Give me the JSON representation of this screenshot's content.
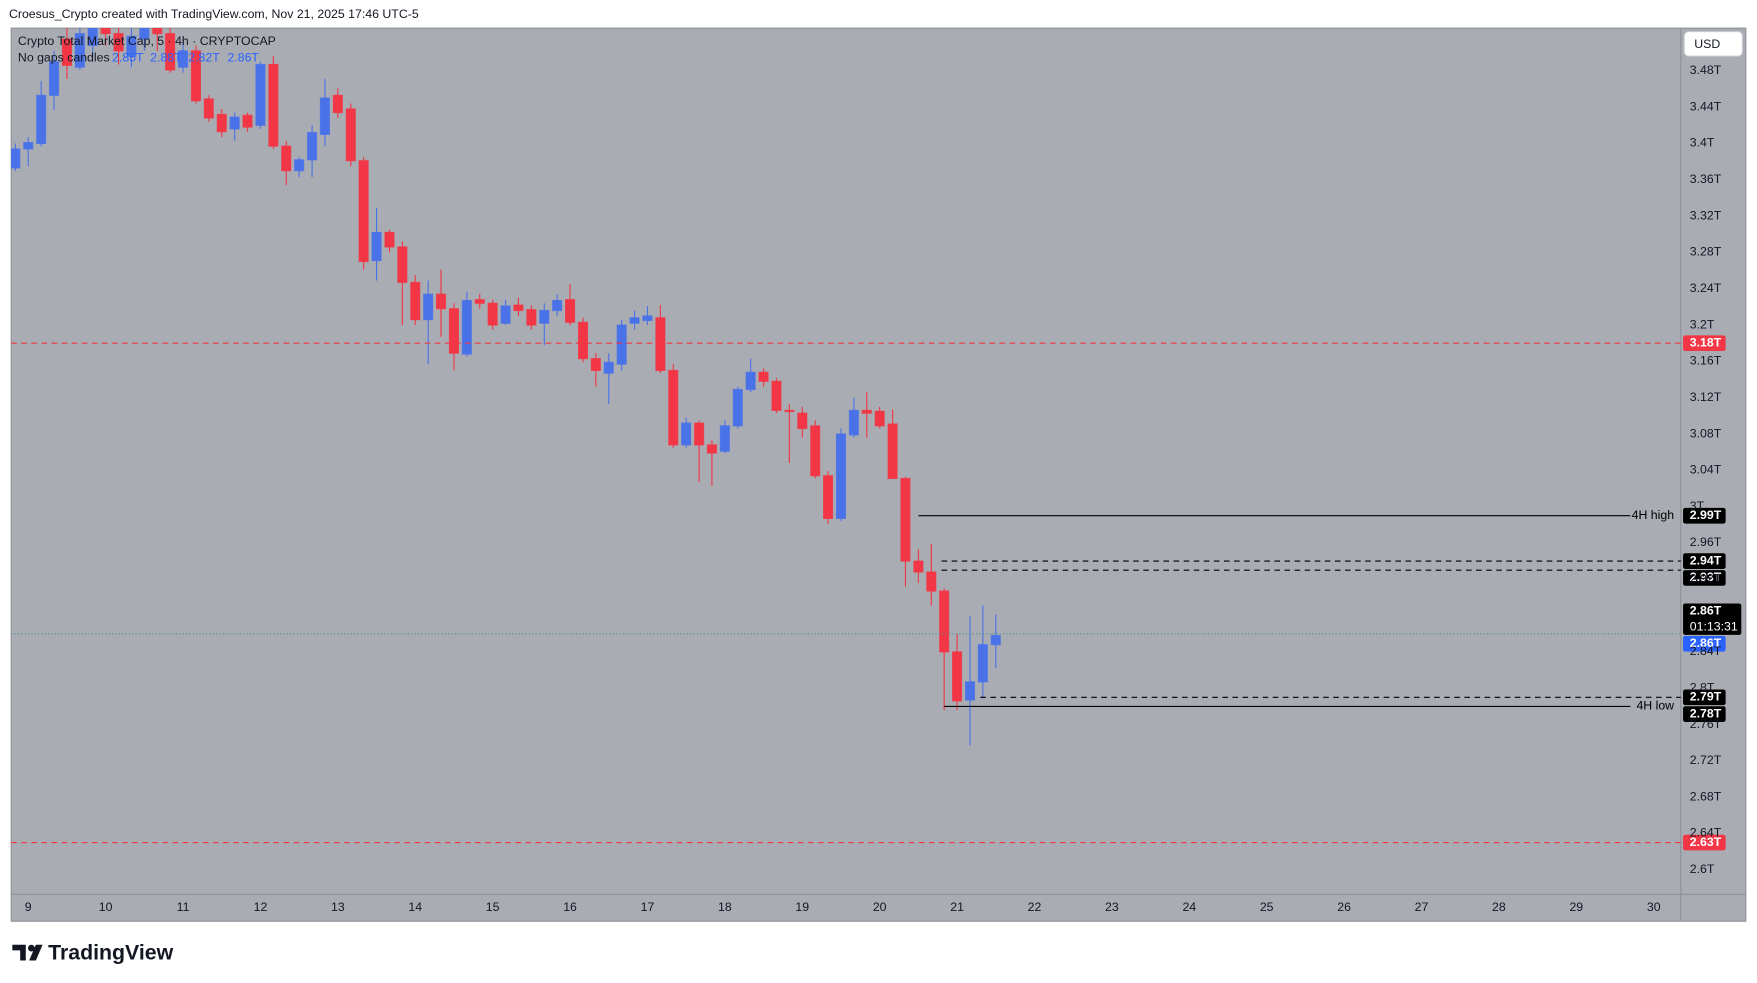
{
  "header": {
    "credit": "Croesus_Crypto created with TradingView.com, Nov 21, 2025 17:46 UTC-5",
    "symbol": "Crypto Total Market Cap, 5 · 4h · CRYPTOCAP",
    "candle_mode": "No gaps candles",
    "ohlc_legend": [
      "2.85T",
      "2.88T",
      "2.82T",
      "2.86T"
    ],
    "currency": "USD"
  },
  "footer": {
    "logo": "TradingView"
  },
  "chart_data": {
    "type": "candlestick",
    "up_color": "#4a72e8",
    "down_color": "#f23645",
    "background": "#a9acb3",
    "xlim": [
      8.78,
      30.35
    ],
    "xticks": [
      9,
      10,
      11,
      12,
      13,
      14,
      15,
      16,
      17,
      18,
      19,
      20,
      21,
      22,
      23,
      24,
      25,
      26,
      27,
      28,
      29,
      30
    ],
    "ylim": [
      2.573,
      3.527
    ],
    "yticks": [
      {
        "value": 3.48,
        "label": "3.48T"
      },
      {
        "value": 3.44,
        "label": "3.44T"
      },
      {
        "value": 3.4,
        "label": "3.4T"
      },
      {
        "value": 3.36,
        "label": "3.36T"
      },
      {
        "value": 3.32,
        "label": "3.32T"
      },
      {
        "value": 3.28,
        "label": "3.28T"
      },
      {
        "value": 3.24,
        "label": "3.24T"
      },
      {
        "value": 3.2,
        "label": "3.2T"
      },
      {
        "value": 3.16,
        "label": "3.16T"
      },
      {
        "value": 3.12,
        "label": "3.12T"
      },
      {
        "value": 3.08,
        "label": "3.08T"
      },
      {
        "value": 3.04,
        "label": "3.04T"
      },
      {
        "value": 3,
        "label": "3T"
      },
      {
        "value": 2.96,
        "label": "2.96T"
      },
      {
        "value": 2.92,
        "label": "2.92T"
      },
      {
        "value": 2.84,
        "label": "2.84T"
      },
      {
        "value": 2.8,
        "label": "2.8T"
      },
      {
        "value": 2.76,
        "label": "2.76T"
      },
      {
        "value": 2.72,
        "label": "2.72T"
      },
      {
        "value": 2.68,
        "label": "2.68T"
      },
      {
        "value": 2.64,
        "label": "2.64T"
      },
      {
        "value": 2.6,
        "label": "2.6T"
      }
    ],
    "grid": false,
    "x": [
      8.833,
      9,
      9.167,
      9.333,
      9.5,
      9.667,
      9.833,
      10,
      10.167,
      10.333,
      10.5,
      10.667,
      10.833,
      11,
      11.167,
      11.333,
      11.5,
      11.667,
      11.833,
      12,
      12.167,
      12.333,
      12.5,
      12.667,
      12.833,
      13,
      13.167,
      13.333,
      13.5,
      13.667,
      13.833,
      14,
      14.167,
      14.333,
      14.5,
      14.667,
      14.833,
      15,
      15.167,
      15.333,
      15.5,
      15.667,
      15.833,
      16,
      16.167,
      16.333,
      16.5,
      16.667,
      16.833,
      17,
      17.167,
      17.333,
      17.5,
      17.667,
      17.833,
      18,
      18.167,
      18.333,
      18.5,
      18.667,
      18.833,
      19,
      19.167,
      19.333,
      19.5,
      19.667,
      19.833,
      20,
      20.167,
      20.333,
      20.5,
      20.667,
      20.833,
      21,
      21.167,
      21.333,
      21.5
    ],
    "open": [
      3.373,
      3.394,
      3.4,
      3.453,
      3.515,
      3.484,
      3.508,
      3.533,
      3.521,
      3.496,
      3.515,
      3.533,
      3.521,
      3.484,
      3.502,
      3.449,
      3.432,
      3.416,
      3.431,
      3.42,
      3.487,
      3.397,
      3.37,
      3.382,
      3.41,
      3.453,
      3.438,
      3.381,
      3.271,
      3.302,
      3.286,
      3.247,
      3.206,
      3.234,
      3.218,
      3.168,
      3.228,
      3.224,
      3.202,
      3.222,
      3.217,
      3.202,
      3.216,
      3.228,
      3.203,
      3.163,
      3.147,
      3.157,
      3.202,
      3.205,
      3.208,
      3.15,
      3.068,
      3.092,
      3.068,
      3.061,
      3.089,
      3.129,
      3.148,
      3.138,
      3.106,
      3.103,
      3.089,
      3.034,
      2.987,
      3.079,
      3.106,
      3.105,
      3.091,
      3.031,
      2.94,
      2.928,
      2.907,
      2.84,
      2.787,
      2.807,
      2.848
    ],
    "high": [
      3.4,
      3.407,
      3.469,
      3.502,
      3.527,
      3.533,
      3.536,
      3.545,
      3.531,
      3.533,
      3.539,
      3.539,
      3.536,
      3.515,
      3.508,
      3.453,
      3.438,
      3.434,
      3.434,
      3.49,
      3.496,
      3.403,
      3.385,
      3.42,
      3.471,
      3.461,
      3.444,
      3.385,
      3.329,
      3.305,
      3.292,
      3.255,
      3.249,
      3.261,
      3.224,
      3.237,
      3.234,
      3.228,
      3.228,
      3.23,
      3.222,
      3.224,
      3.234,
      3.245,
      3.208,
      3.169,
      3.169,
      3.206,
      3.216,
      3.221,
      3.222,
      3.157,
      3.098,
      3.095,
      3.073,
      3.095,
      3.132,
      3.163,
      3.152,
      3.142,
      3.113,
      3.11,
      3.095,
      3.039,
      3.086,
      3.12,
      3.126,
      3.11,
      3.107,
      3.033,
      2.953,
      2.959,
      2.91,
      2.86,
      2.879,
      2.891,
      2.881
    ],
    "low": [
      3.37,
      3.375,
      3.397,
      3.437,
      3.471,
      3.481,
      3.496,
      3.508,
      3.487,
      3.484,
      3.502,
      3.502,
      3.478,
      3.478,
      3.444,
      3.424,
      3.407,
      3.403,
      3.413,
      3.416,
      3.394,
      3.354,
      3.363,
      3.363,
      3.397,
      3.428,
      3.375,
      3.261,
      3.249,
      3.28,
      3.2,
      3.2,
      3.157,
      3.187,
      3.15,
      3.165,
      3.218,
      3.195,
      3.2,
      3.21,
      3.195,
      3.178,
      3.21,
      3.2,
      3.159,
      3.132,
      3.113,
      3.15,
      3.195,
      3.2,
      3.147,
      3.065,
      3.065,
      3.027,
      3.023,
      3.059,
      3.086,
      3.126,
      3.132,
      3.103,
      3.048,
      3.076,
      3.031,
      2.981,
      2.984,
      3.076,
      3.076,
      3.086,
      3.031,
      2.912,
      2.916,
      2.891,
      2.776,
      2.776,
      2.737,
      2.789,
      2.822
    ],
    "close": [
      3.394,
      3.401,
      3.453,
      3.49,
      3.486,
      3.521,
      3.527,
      3.521,
      3.502,
      3.518,
      3.527,
      3.521,
      3.481,
      3.502,
      3.447,
      3.428,
      3.413,
      3.429,
      3.418,
      3.487,
      3.397,
      3.37,
      3.382,
      3.412,
      3.45,
      3.434,
      3.381,
      3.27,
      3.302,
      3.286,
      3.247,
      3.206,
      3.234,
      3.218,
      3.169,
      3.227,
      3.224,
      3.2,
      3.221,
      3.216,
      3.2,
      3.216,
      3.227,
      3.203,
      3.163,
      3.15,
      3.159,
      3.2,
      3.208,
      3.21,
      3.15,
      3.068,
      3.092,
      3.068,
      3.059,
      3.089,
      3.129,
      3.148,
      3.138,
      3.106,
      3.105,
      3.086,
      3.034,
      2.987,
      3.08,
      3.106,
      3.103,
      3.089,
      3.031,
      2.94,
      2.928,
      2.907,
      2.84,
      2.786,
      2.807,
      2.848,
      2.858
    ],
    "levels": [
      {
        "value": 3.18,
        "tag": "3.18T",
        "color": "#f23645",
        "style": "dashed"
      },
      {
        "value": 2.99,
        "tag": "2.99T",
        "label": "4H high",
        "color": "#000000",
        "style": "solid",
        "from": 20.5
      },
      {
        "value": 2.94,
        "tag": "2.94T",
        "color": "#000000",
        "style": "dashed",
        "from": 20.8
      },
      {
        "value": 2.93,
        "tag": "2.93T",
        "color": "#000000",
        "style": "dashed",
        "from": 20.8
      },
      {
        "value": 2.86,
        "tag": "2.86T",
        "color": "#2962ff",
        "style": "dotted"
      },
      {
        "value": 2.79,
        "tag": "2.79T",
        "color": "#000000",
        "style": "dashed",
        "from": 21.3
      },
      {
        "value": 2.78,
        "tag": "2.78T",
        "label": "4H low",
        "color": "#000000",
        "style": "solid",
        "from": 20.83
      },
      {
        "value": 2.63,
        "tag": "2.63T",
        "color": "#f23645",
        "style": "dashed"
      }
    ],
    "last_price": {
      "value": 2.86,
      "tag": "2.86T",
      "countdown": "01:13:31",
      "color": "#000000"
    }
  }
}
